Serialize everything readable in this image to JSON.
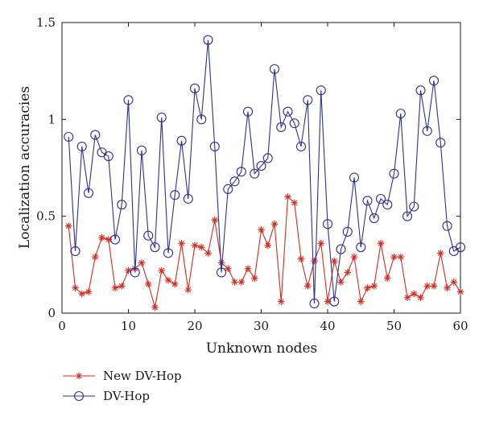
{
  "chart_data": {
    "type": "line",
    "title": "",
    "xlabel": "Unknown nodes",
    "ylabel": "Localization accuracies",
    "xlim": [
      0,
      60
    ],
    "ylim": [
      0,
      1.5
    ],
    "xticks": [
      0,
      10,
      20,
      30,
      40,
      50,
      60
    ],
    "yticks": [
      0,
      0.5,
      1,
      1.5
    ],
    "xtick_labels": [
      "0",
      "10",
      "20",
      "30",
      "40",
      "50",
      "60"
    ],
    "ytick_labels": [
      "0",
      "0.5",
      "1",
      "1.5"
    ],
    "grid": false,
    "legend_position": "below",
    "x": [
      1,
      2,
      3,
      4,
      5,
      6,
      7,
      8,
      9,
      10,
      11,
      12,
      13,
      14,
      15,
      16,
      17,
      18,
      19,
      20,
      21,
      22,
      23,
      24,
      25,
      26,
      27,
      28,
      29,
      30,
      31,
      32,
      33,
      34,
      35,
      36,
      37,
      38,
      39,
      40,
      41,
      42,
      43,
      44,
      45,
      46,
      47,
      48,
      49,
      50,
      51,
      52,
      53,
      54,
      55,
      56,
      57,
      58,
      59,
      60
    ],
    "series": [
      {
        "name": "New DV-Hop",
        "color": "#d62b1f",
        "marker": "star",
        "values": [
          0.45,
          0.13,
          0.1,
          0.11,
          0.29,
          0.39,
          0.38,
          0.13,
          0.14,
          0.22,
          0.23,
          0.26,
          0.15,
          0.03,
          0.22,
          0.17,
          0.15,
          0.36,
          0.12,
          0.35,
          0.34,
          0.31,
          0.48,
          0.26,
          0.23,
          0.16,
          0.16,
          0.23,
          0.18,
          0.43,
          0.35,
          0.46,
          0.06,
          0.6,
          0.57,
          0.28,
          0.14,
          0.27,
          0.36,
          0.06,
          0.27,
          0.16,
          0.21,
          0.29,
          0.06,
          0.13,
          0.14,
          0.36,
          0.18,
          0.29,
          0.29,
          0.08,
          0.1,
          0.08,
          0.14,
          0.14,
          0.31,
          0.13,
          0.16,
          0.11
        ]
      },
      {
        "name": "DV-Hop",
        "color": "#2e3192",
        "marker": "circle",
        "values": [
          0.91,
          0.32,
          0.86,
          0.62,
          0.92,
          0.83,
          0.81,
          0.38,
          0.56,
          1.1,
          0.21,
          0.84,
          0.4,
          0.34,
          1.01,
          0.31,
          0.61,
          0.89,
          0.59,
          1.16,
          1.0,
          1.41,
          0.86,
          0.21,
          0.64,
          0.68,
          0.73,
          1.04,
          0.72,
          0.76,
          0.8,
          1.26,
          0.96,
          1.04,
          0.98,
          0.86,
          1.1,
          0.05,
          1.15,
          0.46,
          0.06,
          0.33,
          0.42,
          0.7,
          0.34,
          0.58,
          0.49,
          0.59,
          0.56,
          0.72,
          1.03,
          0.5,
          0.55,
          1.15,
          0.94,
          1.2,
          0.88,
          0.45,
          0.32,
          0.34
        ]
      }
    ]
  }
}
